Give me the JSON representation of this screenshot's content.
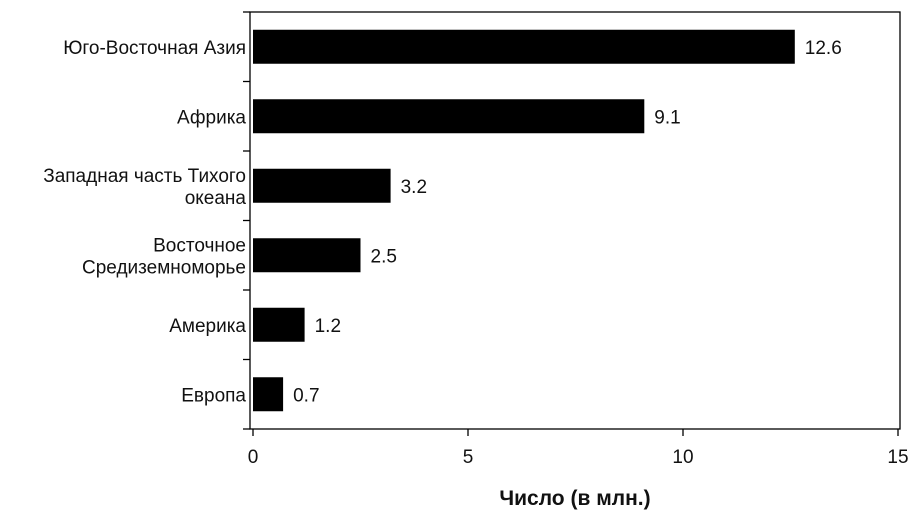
{
  "chart_data": {
    "type": "bar",
    "orientation": "horizontal",
    "categories": [
      [
        "Юго-Восточная Азия"
      ],
      [
        "Африка"
      ],
      [
        "Западная часть Тихого",
        "океана"
      ],
      [
        "Восточное",
        "Средиземноморье"
      ],
      [
        "Америка"
      ],
      [
        "Европа"
      ]
    ],
    "values": [
      12.6,
      9.1,
      3.2,
      2.5,
      1.2,
      0.7
    ],
    "value_labels": [
      "12.6",
      "9.1",
      "3.2",
      "2.5",
      "1.2",
      "0.7"
    ],
    "xlim": [
      0,
      15
    ],
    "xticks": [
      0,
      5,
      10,
      15
    ],
    "xtick_labels": [
      "0",
      "5",
      "10",
      "15"
    ],
    "xlabel": "Число (в млн.)",
    "ylabel": "",
    "title": "",
    "bar_color": "#000000",
    "grid": false,
    "legend": "none"
  }
}
